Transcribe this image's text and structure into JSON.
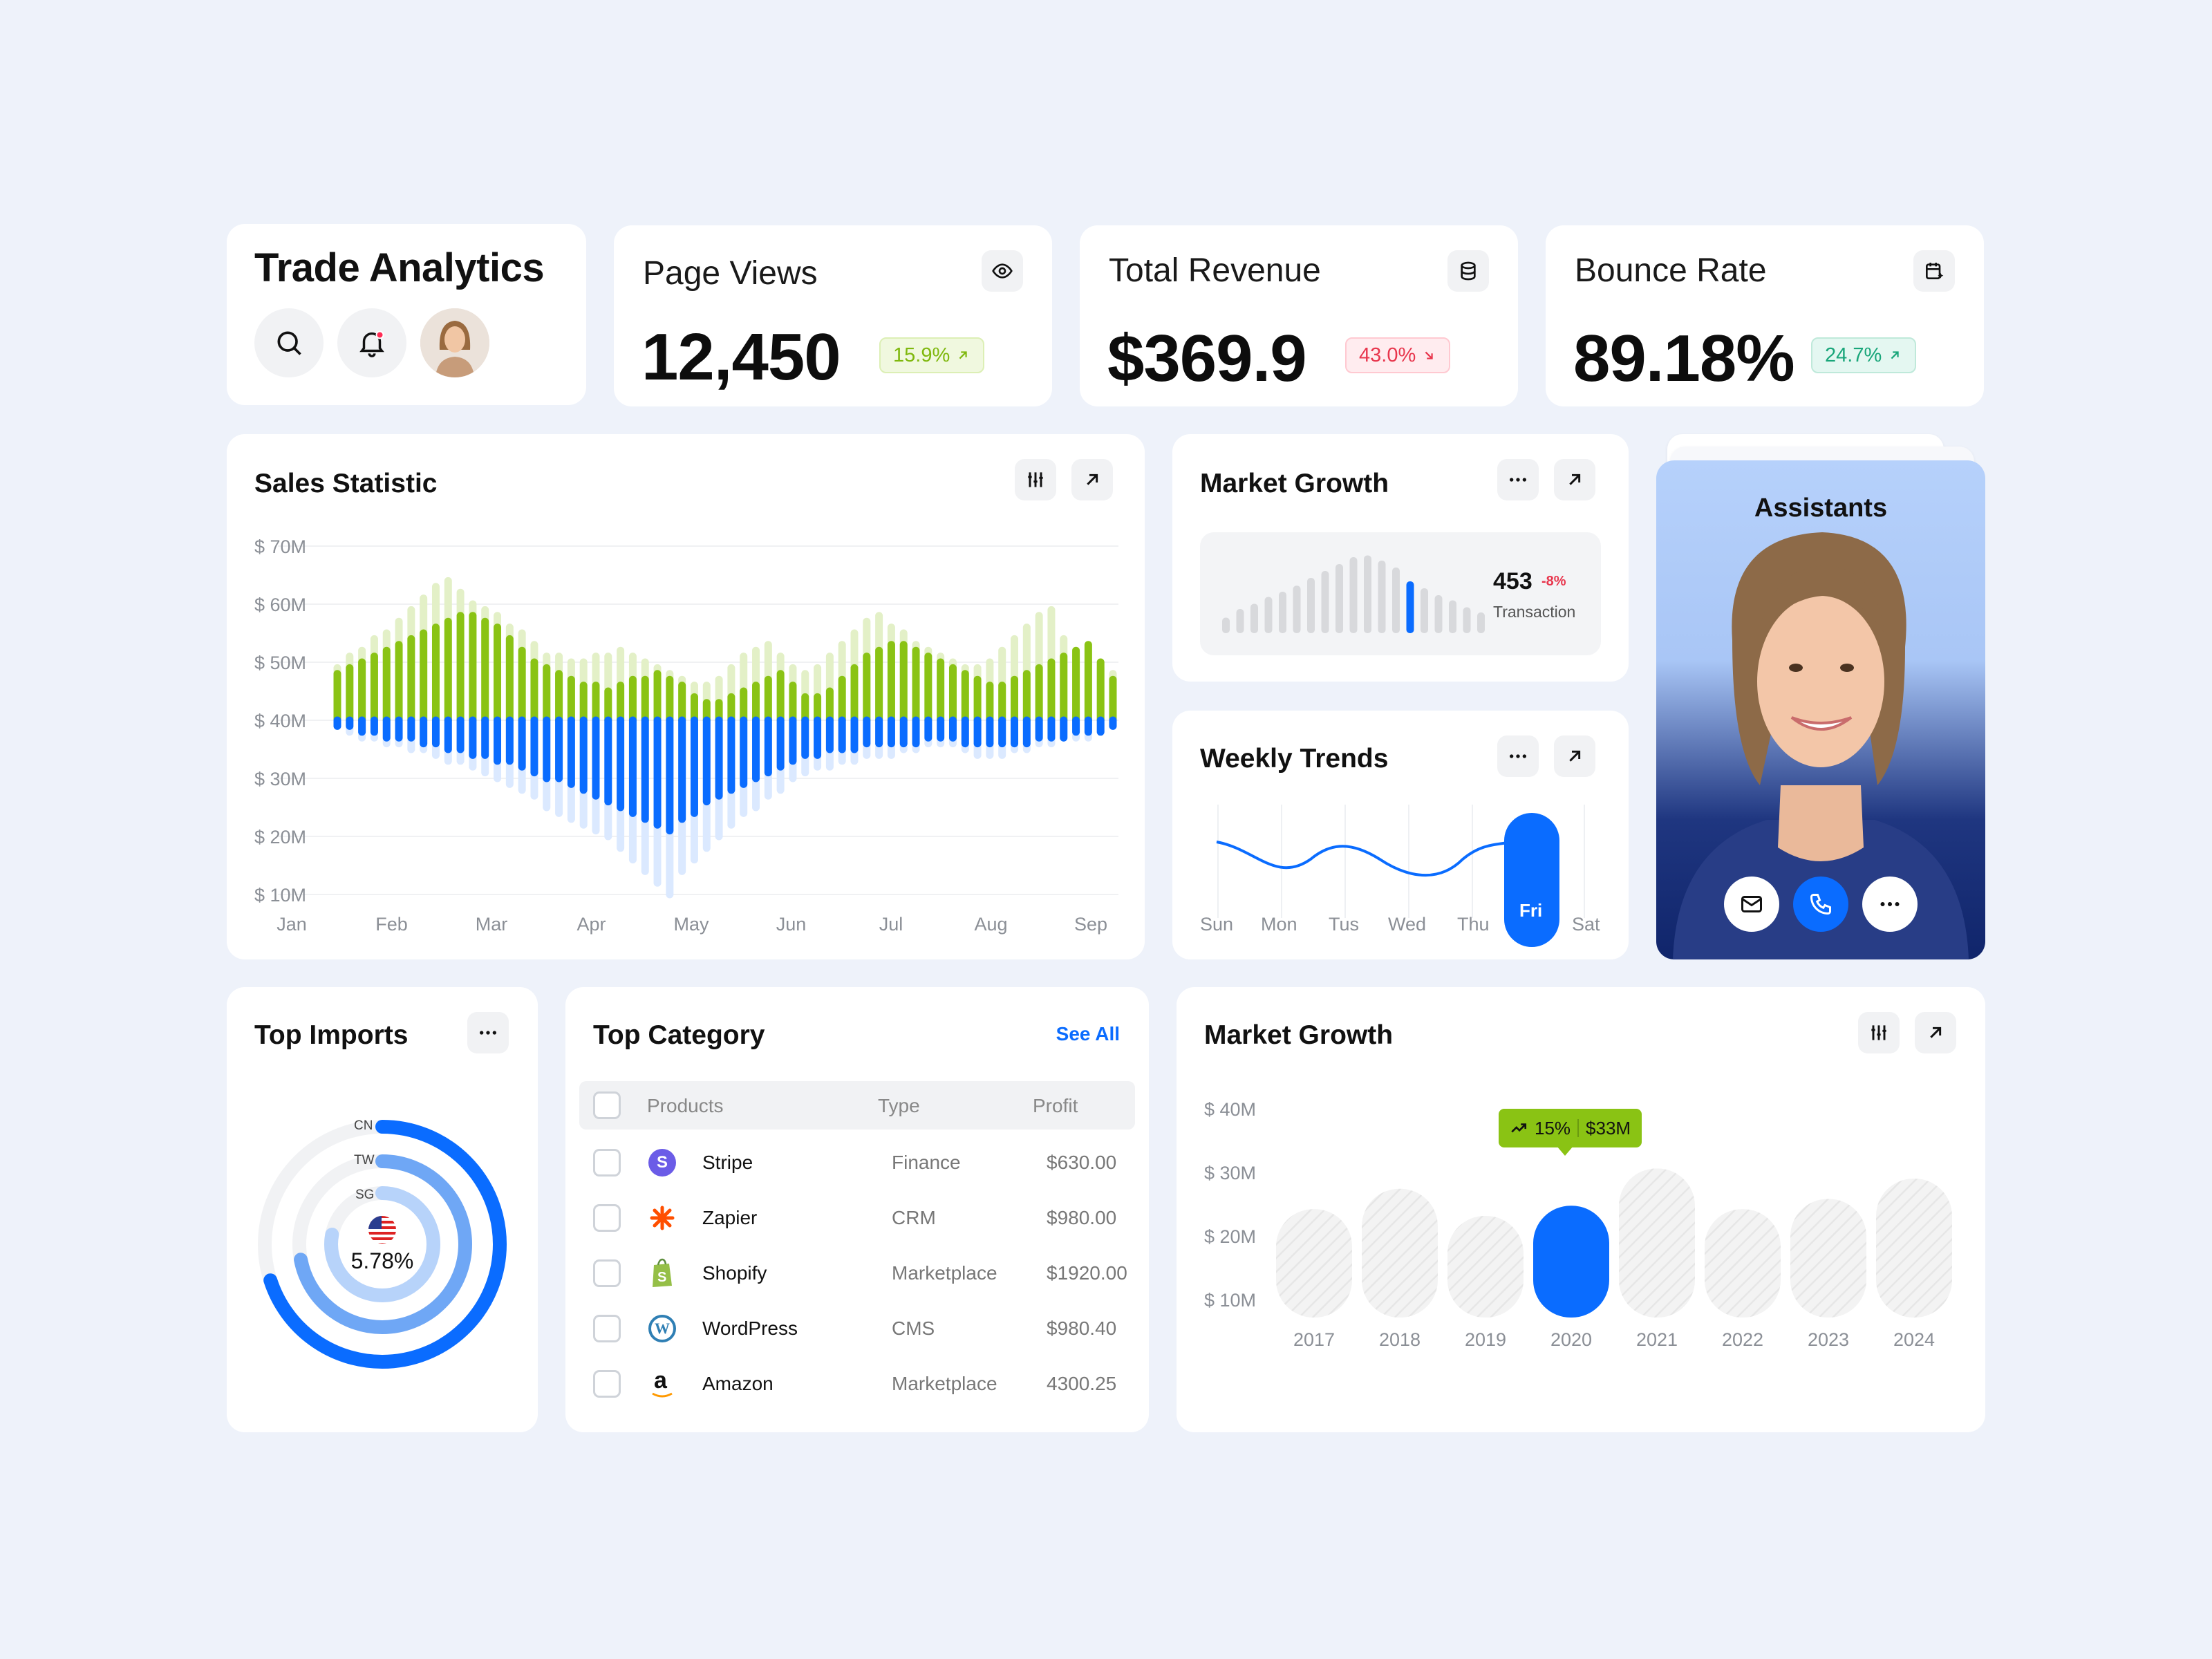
{
  "header": {
    "title": "Trade Analytics"
  },
  "stats": [
    {
      "title": "Page Views",
      "value": "12,450",
      "change": "15.9%",
      "direction": "up",
      "icon": "eye-icon"
    },
    {
      "title": "Total Revenue",
      "value": "$369.9",
      "change": "43.0%",
      "direction": "down",
      "icon": "database-icon"
    },
    {
      "title": "Bounce Rate",
      "value": "89.18%",
      "change": "24.7%",
      "direction": "up",
      "icon": "calendar-sparkle-icon"
    }
  ],
  "sales": {
    "title": "Sales Statistic",
    "chart_data": {
      "type": "bar",
      "title": "Sales Statistic",
      "y_tick_labels": [
        "$ 70M",
        "$ 60M",
        "$ 50M",
        "$ 40M",
        "$ 30M",
        "$ 20M",
        "$ 10M"
      ],
      "x_tick_labels": [
        "Jan",
        "Feb",
        "Mar",
        "Apr",
        "May",
        "Jun",
        "Jul",
        "Aug",
        "Sep"
      ],
      "ylim": [
        10,
        70
      ],
      "baseline": 40,
      "colors": {
        "green": "#8ac314",
        "green_light": "#e3f0c7",
        "blue": "#0a6cff",
        "blue_light": "#dbe9ff"
      },
      "series": [
        {
          "values": [
            48,
            49,
            50,
            51,
            52,
            53,
            54,
            55,
            56,
            57,
            58,
            58,
            57,
            56,
            54,
            52,
            50,
            49,
            48,
            47,
            46,
            46,
            45,
            46,
            47,
            47,
            48,
            47,
            46,
            44,
            43,
            43,
            44,
            45,
            46,
            47,
            48,
            46,
            44,
            44,
            45,
            47,
            49,
            51,
            52,
            53,
            53,
            52,
            51,
            50,
            49,
            48,
            47,
            46,
            46,
            47,
            48,
            49,
            50,
            51,
            52,
            53,
            50,
            47
          ]
        },
        {
          "values": [
            49,
            51,
            52,
            54,
            55,
            57,
            59,
            61,
            63,
            64,
            62,
            60,
            59,
            58,
            56,
            55,
            53,
            51,
            51,
            50,
            50,
            51,
            51,
            52,
            51,
            50,
            49,
            48,
            47,
            46,
            46,
            47,
            49,
            51,
            52,
            53,
            51,
            49,
            48,
            49,
            51,
            53,
            55,
            57,
            58,
            56,
            55,
            53,
            52,
            51,
            50,
            49,
            49,
            50,
            52,
            54,
            56,
            58,
            59,
            54,
            51,
            50,
            49,
            48
          ]
        },
        {
          "values": [
            39,
            39,
            38,
            38,
            37,
            37,
            37,
            36,
            36,
            35,
            35,
            34,
            34,
            33,
            33,
            32,
            31,
            30,
            30,
            29,
            28,
            27,
            26,
            25,
            24,
            23,
            22,
            21,
            23,
            24,
            26,
            27,
            28,
            29,
            30,
            31,
            32,
            33,
            34,
            34,
            35,
            35,
            35,
            36,
            36,
            36,
            36,
            36,
            37,
            37,
            37,
            36,
            36,
            36,
            36,
            36,
            36,
            37,
            37,
            37,
            38,
            38,
            38,
            39
          ]
        },
        {
          "values": [
            39,
            38,
            37,
            37,
            36,
            36,
            35,
            35,
            34,
            33,
            33,
            32,
            31,
            30,
            29,
            28,
            27,
            25,
            24,
            23,
            22,
            21,
            20,
            18,
            16,
            14,
            12,
            10,
            14,
            16,
            18,
            20,
            22,
            24,
            25,
            27,
            28,
            30,
            31,
            32,
            32,
            33,
            33,
            34,
            34,
            34,
            35,
            35,
            36,
            36,
            36,
            35,
            34,
            34,
            34,
            35,
            35,
            36,
            36,
            37,
            37,
            37,
            38,
            39
          ]
        }
      ]
    }
  },
  "market_small": {
    "title": "Market Growth",
    "value": "453",
    "change": "-8%",
    "label": "Transaction",
    "chart_data": {
      "type": "bar",
      "values": [
        18,
        28,
        34,
        42,
        48,
        55,
        64,
        72,
        80,
        88,
        90,
        84,
        76,
        60,
        52,
        44,
        38,
        30,
        24
      ],
      "highlight_index": 13
    }
  },
  "weekly": {
    "title": "Weekly Trends",
    "days": [
      "Sun",
      "Mon",
      "Tus",
      "Wed",
      "Thu",
      "Fri",
      "Sat"
    ],
    "active_day": "Fri"
  },
  "assistant": {
    "title": "Assistants"
  },
  "imports": {
    "title": "Top Imports",
    "labels": [
      "CN",
      "TW",
      "SG"
    ],
    "value": "5.78%",
    "chart_data": {
      "type": "pie",
      "rings": [
        {
          "name": "CN",
          "value": 0.7
        },
        {
          "name": "TW",
          "value": 0.72
        },
        {
          "name": "SG",
          "value": 0.78
        }
      ]
    }
  },
  "category": {
    "title": "Top Category",
    "see_all": "See All",
    "columns": [
      "Products",
      "Type",
      "Profit"
    ],
    "rows": [
      {
        "name": "Stripe",
        "type": "Finance",
        "profit": "$630.00"
      },
      {
        "name": "Zapier",
        "type": "CRM",
        "profit": "$980.00"
      },
      {
        "name": "Shopify",
        "type": "Marketplace",
        "profit": "$1920.00"
      },
      {
        "name": "WordPress",
        "type": "CMS",
        "profit": "$980.40"
      },
      {
        "name": "Amazon",
        "type": "Marketplace",
        "profit": "4300.25"
      }
    ]
  },
  "market_big": {
    "title": "Market Growth",
    "tooltip_change": "15%",
    "tooltip_value": "$33M",
    "chart_data": {
      "type": "bar",
      "categories": [
        "2017",
        "2018",
        "2019",
        "2020",
        "2021",
        "2022",
        "2023",
        "2024"
      ],
      "values": [
        32,
        38,
        30,
        33,
        44,
        32,
        35,
        41
      ],
      "highlight": "2020",
      "y_tick_labels": [
        "$ 40M",
        "$ 30M",
        "$ 20M",
        "$ 10M"
      ]
    }
  }
}
